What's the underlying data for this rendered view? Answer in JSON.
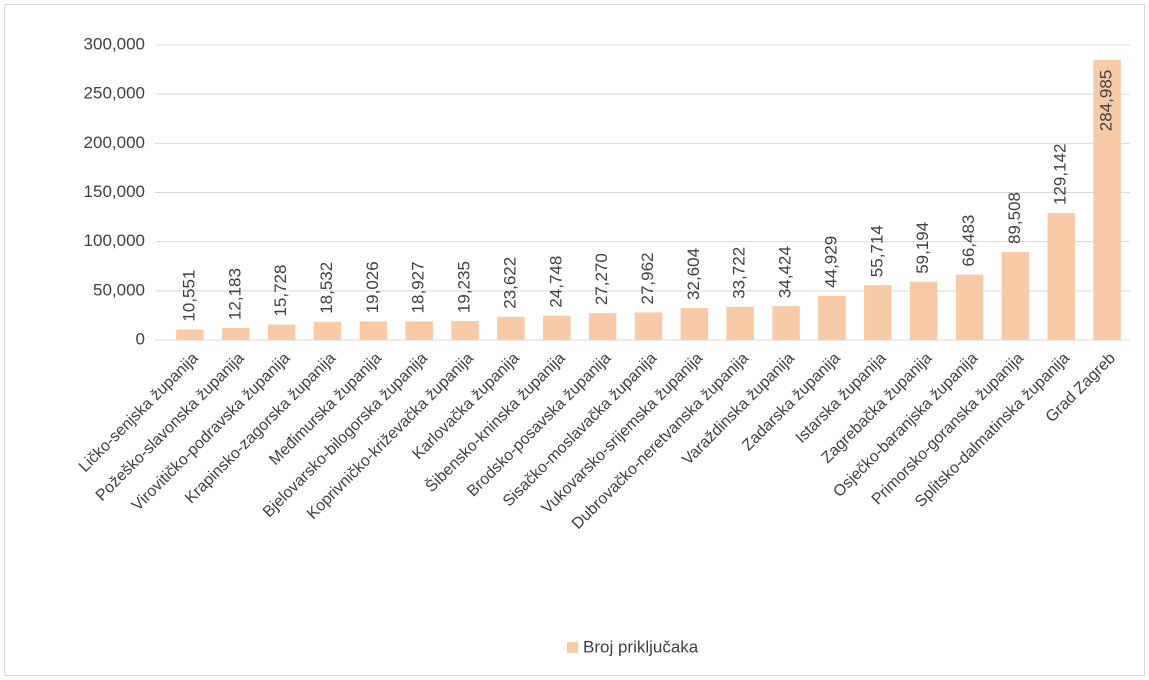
{
  "chart_data": {
    "type": "bar",
    "categories": [
      "Ličko-senjska županija",
      "Požeško-slavonska županija",
      "Virovitičko-podravska županija",
      "Krapinsko-zagorska županija",
      "Međimurska županija",
      "Bjelovarsko-bilogorska županija",
      "Koprivničko-križevačka županija",
      "Karlovačka županija",
      "Šibensko-kninska županija",
      "Brodsko-posavska županija",
      "Sisačko-moslavačka županija",
      "Vukovarsko-srijemska županija",
      "Dubrovačko-neretvanska županija",
      "Varaždinska županija",
      "Zadarska županija",
      "Istarska županija",
      "Zagrebačka županija",
      "Osječko-baranjska županija",
      "Primorsko-goranska županija",
      "Splitsko-dalmatinska županija",
      "Grad Zagreb"
    ],
    "series": [
      {
        "name": "Broj priključaka",
        "color": "#f8cba8",
        "values": [
          10551,
          12183,
          15728,
          18532,
          19026,
          18927,
          19235,
          23622,
          24748,
          27270,
          27962,
          32604,
          33722,
          34424,
          44929,
          55714,
          59194,
          66483,
          89508,
          129142,
          284985
        ],
        "value_labels": [
          "10,551",
          "12,183",
          "15,728",
          "18,532",
          "19,026",
          "18,927",
          "19,235",
          "23,622",
          "24,748",
          "27,270",
          "27,962",
          "32,604",
          "33,722",
          "34,424",
          "44,929",
          "55,714",
          "59,194",
          "66,483",
          "89,508",
          "129,142",
          "284,985"
        ]
      }
    ],
    "ylim": [
      0,
      300000
    ],
    "yticks": [
      0,
      {
        "value": 50000,
        "label": "50,000"
      },
      {
        "value": 100000,
        "label": "100,000"
      },
      {
        "value": 150000,
        "label": "150,000"
      },
      {
        "value": 200000,
        "label": "200,000"
      },
      {
        "value": 250000,
        "label": "250,000"
      },
      {
        "value": 300000,
        "label": "300,000"
      }
    ],
    "grid": true,
    "legend": "bottom"
  }
}
